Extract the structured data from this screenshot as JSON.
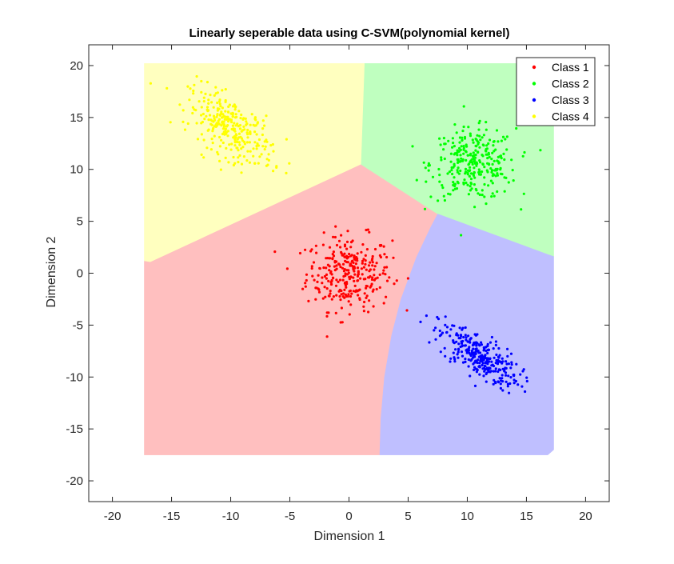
{
  "chart_data": {
    "type": "scatter",
    "title": "Linearly seperable data using C-SVM(polynomial kernel)",
    "xlabel": "Dimension 1",
    "ylabel": "Dimension 2",
    "xlim": [
      -22,
      22
    ],
    "ylim": [
      -22,
      22
    ],
    "xticks": [
      -20,
      -15,
      -10,
      -5,
      0,
      5,
      10,
      15,
      20
    ],
    "yticks": [
      -20,
      -15,
      -10,
      -5,
      0,
      5,
      10,
      15,
      20
    ],
    "xtick_labels": [
      "-20",
      "-15",
      "-10",
      "-5",
      "0",
      "5",
      "10",
      "15",
      "20"
    ],
    "ytick_labels": [
      "-20",
      "-15",
      "-10",
      "-5",
      "0",
      "5",
      "10",
      "15",
      "20"
    ],
    "grid": false,
    "legend_position": "top-right",
    "series": [
      {
        "name": "Class 1",
        "color": "#ff0000",
        "center": [
          0,
          0
        ],
        "spread": [
          1.8,
          1.8
        ],
        "correlation": 0,
        "count": 300
      },
      {
        "name": "Class 2",
        "color": "#00ff00",
        "center": [
          10.5,
          10.5
        ],
        "spread": [
          1.8,
          1.7
        ],
        "correlation": 0,
        "count": 300
      },
      {
        "name": "Class 3",
        "color": "#0000ff",
        "center": [
          11,
          -8
        ],
        "spread": [
          1.7,
          1.5
        ],
        "correlation": -0.7,
        "count": 300
      },
      {
        "name": "Class 4",
        "color": "#ffff00",
        "center": [
          -10,
          14
        ],
        "spread": [
          1.8,
          1.8
        ],
        "correlation": -0.6,
        "count": 300
      }
    ],
    "decision_regions": [
      {
        "class": "Class 1",
        "color": "#ffbfbf",
        "polygon": [
          [
            -17.3,
            -17.5
          ],
          [
            -17.3,
            1.2
          ],
          [
            -16.8,
            1.1
          ],
          [
            1,
            10.5
          ],
          [
            7.5,
            5.7
          ],
          [
            6.9,
            4.4
          ],
          [
            5.7,
            1.5
          ],
          [
            4.4,
            -2.5
          ],
          [
            3.6,
            -6
          ],
          [
            3,
            -10
          ],
          [
            2.7,
            -14
          ],
          [
            2.6,
            -17.5
          ]
        ]
      },
      {
        "class": "Class 2",
        "color": "#bfffbf",
        "polygon": [
          [
            1,
            10.5
          ],
          [
            1.3,
            20.2
          ],
          [
            16.7,
            20.2
          ],
          [
            17.3,
            17.5
          ],
          [
            17.3,
            1.6
          ],
          [
            16.8,
            1.8
          ],
          [
            7.5,
            5.7
          ]
        ]
      },
      {
        "class": "Class 3",
        "color": "#bfbfff",
        "polygon": [
          [
            7.5,
            5.7
          ],
          [
            16.8,
            1.8
          ],
          [
            17.3,
            1.6
          ],
          [
            17.3,
            -17
          ],
          [
            16.8,
            -17.5
          ],
          [
            2.6,
            -17.5
          ],
          [
            2.7,
            -14
          ],
          [
            3,
            -10
          ],
          [
            3.6,
            -6
          ],
          [
            4.4,
            -2.5
          ],
          [
            5.7,
            1.5
          ],
          [
            6.9,
            4.4
          ]
        ]
      },
      {
        "class": "Class 4",
        "color": "#ffffbf",
        "polygon": [
          [
            -17.3,
            1.2
          ],
          [
            -16.8,
            1.1
          ],
          [
            1,
            10.5
          ],
          [
            1.3,
            20.2
          ],
          [
            -17.3,
            20.2
          ]
        ]
      }
    ]
  }
}
